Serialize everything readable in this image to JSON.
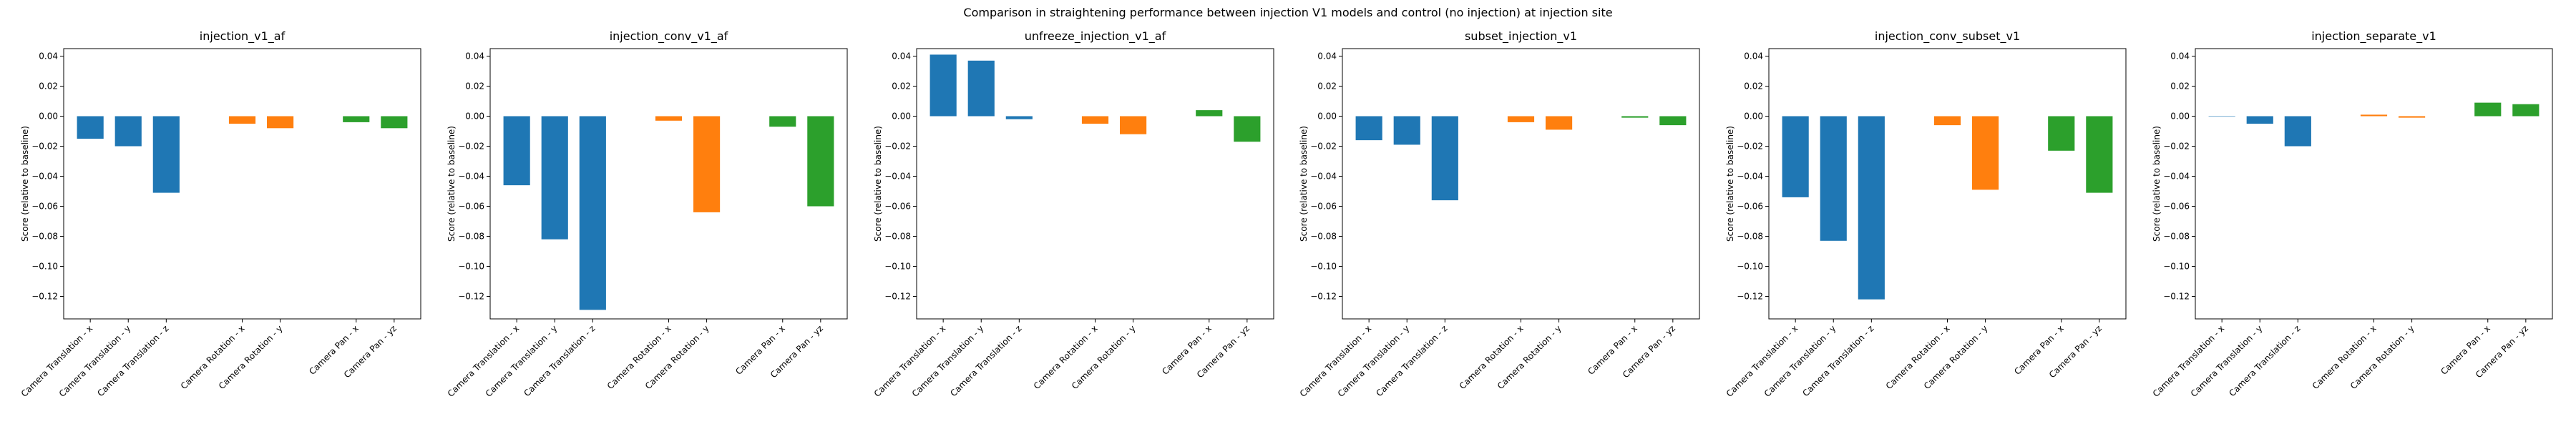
{
  "suptitle": "Comparison in straightening performance between injection V1 models and control (no injection) at injection site",
  "colors": {
    "Camera Translation": "#1f77b4",
    "Camera Rotation": "#ff7f0e",
    "Camera Pan": "#2ca02c"
  },
  "chart_data": [
    {
      "type": "bar",
      "title": "injection_v1_af",
      "ylabel": "Score (relative to baseline)",
      "ylim": [
        -0.135,
        0.045
      ],
      "yticks": [
        "0.04",
        "0.02",
        "0.00",
        "−0.02",
        "−0.04",
        "−0.06",
        "−0.08",
        "−0.10",
        "−0.12"
      ],
      "categories": [
        "Camera Translation - x",
        "Camera Translation - y",
        "Camera Translation - z",
        "Camera Rotation - x",
        "Camera Rotation - y",
        "Camera Pan - x",
        "Camera Pan - yz"
      ],
      "groups": [
        "Camera Translation",
        "Camera Translation",
        "Camera Translation",
        "Camera Rotation",
        "Camera Rotation",
        "Camera Pan",
        "Camera Pan"
      ],
      "positions": [
        0,
        1,
        2,
        4,
        5,
        7,
        8
      ],
      "values": [
        -0.015,
        -0.02,
        -0.051,
        -0.005,
        -0.008,
        -0.004,
        -0.008
      ]
    },
    {
      "type": "bar",
      "title": "injection_conv_v1_af",
      "ylabel": "Score (relative to baseline)",
      "ylim": [
        -0.135,
        0.045
      ],
      "yticks": [
        "0.04",
        "0.02",
        "0.00",
        "−0.02",
        "−0.04",
        "−0.06",
        "−0.08",
        "−0.10",
        "−0.12"
      ],
      "categories": [
        "Camera Translation - x",
        "Camera Translation - y",
        "Camera Translation - z",
        "Camera Rotation - x",
        "Camera Rotation - y",
        "Camera Pan - x",
        "Camera Pan - yz"
      ],
      "groups": [
        "Camera Translation",
        "Camera Translation",
        "Camera Translation",
        "Camera Rotation",
        "Camera Rotation",
        "Camera Pan",
        "Camera Pan"
      ],
      "positions": [
        0,
        1,
        2,
        4,
        5,
        7,
        8
      ],
      "values": [
        -0.046,
        -0.082,
        -0.129,
        -0.003,
        -0.064,
        -0.007,
        -0.06
      ]
    },
    {
      "type": "bar",
      "title": "unfreeze_injection_v1_af",
      "ylabel": "Score (relative to baseline)",
      "ylim": [
        -0.135,
        0.045
      ],
      "yticks": [
        "0.04",
        "0.02",
        "0.00",
        "−0.02",
        "−0.04",
        "−0.06",
        "−0.08",
        "−0.10",
        "−0.12"
      ],
      "categories": [
        "Camera Translation - x",
        "Camera Translation - y",
        "Camera Translation - z",
        "Camera Rotation - x",
        "Camera Rotation - y",
        "Camera Pan - x",
        "Camera Pan - yz"
      ],
      "groups": [
        "Camera Translation",
        "Camera Translation",
        "Camera Translation",
        "Camera Rotation",
        "Camera Rotation",
        "Camera Pan",
        "Camera Pan"
      ],
      "positions": [
        0,
        1,
        2,
        4,
        5,
        7,
        8
      ],
      "values": [
        0.041,
        0.037,
        -0.002,
        -0.005,
        -0.012,
        0.004,
        -0.017
      ]
    },
    {
      "type": "bar",
      "title": "subset_injection_v1",
      "ylabel": "Score (relative to baseline)",
      "ylim": [
        -0.135,
        0.045
      ],
      "yticks": [
        "0.04",
        "0.02",
        "0.00",
        "−0.02",
        "−0.04",
        "−0.06",
        "−0.08",
        "−0.10",
        "−0.12"
      ],
      "categories": [
        "Camera Translation - x",
        "Camera Translation - y",
        "Camera Translation - z",
        "Camera Rotation - x",
        "Camera Rotation - y",
        "Camera Pan - x",
        "Camera Pan - yz"
      ],
      "groups": [
        "Camera Translation",
        "Camera Translation",
        "Camera Translation",
        "Camera Rotation",
        "Camera Rotation",
        "Camera Pan",
        "Camera Pan"
      ],
      "positions": [
        0,
        1,
        2,
        4,
        5,
        7,
        8
      ],
      "values": [
        -0.016,
        -0.019,
        -0.056,
        -0.004,
        -0.009,
        -0.001,
        -0.006
      ]
    },
    {
      "type": "bar",
      "title": "injection_conv_subset_v1",
      "ylabel": "Score (relative to baseline)",
      "ylim": [
        -0.135,
        0.045
      ],
      "yticks": [
        "0.04",
        "0.02",
        "0.00",
        "−0.02",
        "−0.04",
        "−0.06",
        "−0.08",
        "−0.10",
        "−0.12"
      ],
      "categories": [
        "Camera Translation - x",
        "Camera Translation - y",
        "Camera Translation - z",
        "Camera Rotation - x",
        "Camera Rotation - y",
        "Camera Pan - x",
        "Camera Pan - yz"
      ],
      "groups": [
        "Camera Translation",
        "Camera Translation",
        "Camera Translation",
        "Camera Rotation",
        "Camera Rotation",
        "Camera Pan",
        "Camera Pan"
      ],
      "positions": [
        0,
        1,
        2,
        4,
        5,
        7,
        8
      ],
      "values": [
        -0.054,
        -0.083,
        -0.122,
        -0.006,
        -0.049,
        -0.023,
        -0.051
      ]
    },
    {
      "type": "bar",
      "title": "injection_separate_v1",
      "ylabel": "Score (relative to baseline)",
      "ylim": [
        -0.135,
        0.045
      ],
      "yticks": [
        "0.04",
        "0.02",
        "0.00",
        "−0.02",
        "−0.04",
        "−0.06",
        "−0.08",
        "−0.10",
        "−0.12"
      ],
      "categories": [
        "Camera Translation - x",
        "Camera Translation - y",
        "Camera Translation - z",
        "Camera Rotation - x",
        "Camera Rotation - y",
        "Camera Pan - x",
        "Camera Pan - yz"
      ],
      "groups": [
        "Camera Translation",
        "Camera Translation",
        "Camera Translation",
        "Camera Rotation",
        "Camera Rotation",
        "Camera Pan",
        "Camera Pan"
      ],
      "positions": [
        0,
        1,
        2,
        4,
        5,
        7,
        8
      ],
      "values": [
        0.0,
        -0.005,
        -0.02,
        0.001,
        -0.001,
        0.009,
        0.008
      ]
    }
  ]
}
